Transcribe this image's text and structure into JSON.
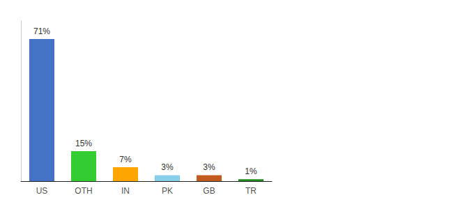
{
  "chart_data": {
    "type": "bar",
    "categories": [
      "US",
      "OTH",
      "IN",
      "PK",
      "GB",
      "TR"
    ],
    "values": [
      71,
      15,
      7,
      3,
      3,
      1
    ],
    "value_labels": [
      "71%",
      "15%",
      "7%",
      "3%",
      "3%",
      "1%"
    ],
    "colors": [
      "#4472C4",
      "#33CC33",
      "#FFA500",
      "#87CEEB",
      "#C05A1F",
      "#228B22"
    ],
    "ylim": [
      0,
      80
    ],
    "grid": false,
    "data_labels": true,
    "tick_labels": "x"
  }
}
